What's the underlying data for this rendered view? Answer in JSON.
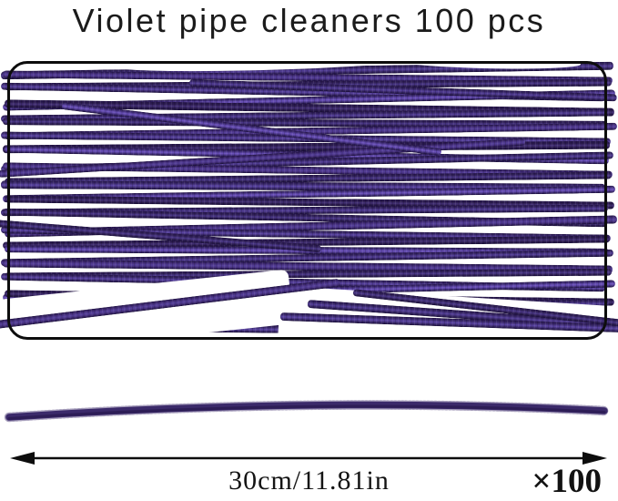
{
  "title": "Violet pipe cleaners 100 pcs",
  "measurement": {
    "length_label": "30cm/11.81in",
    "quantity_label": "×100"
  },
  "colors": {
    "pipe_cleaner_violet": "#452f7d",
    "pipe_cleaner_highlight": "#56419b",
    "pipe_cleaner_shadow": "#1a0f33",
    "frame_border": "#0d0d0d",
    "text": "#1b1b1b",
    "background": "#ffffff"
  },
  "icons": {
    "measurement_arrow": "double-headed-arrow ↔"
  }
}
